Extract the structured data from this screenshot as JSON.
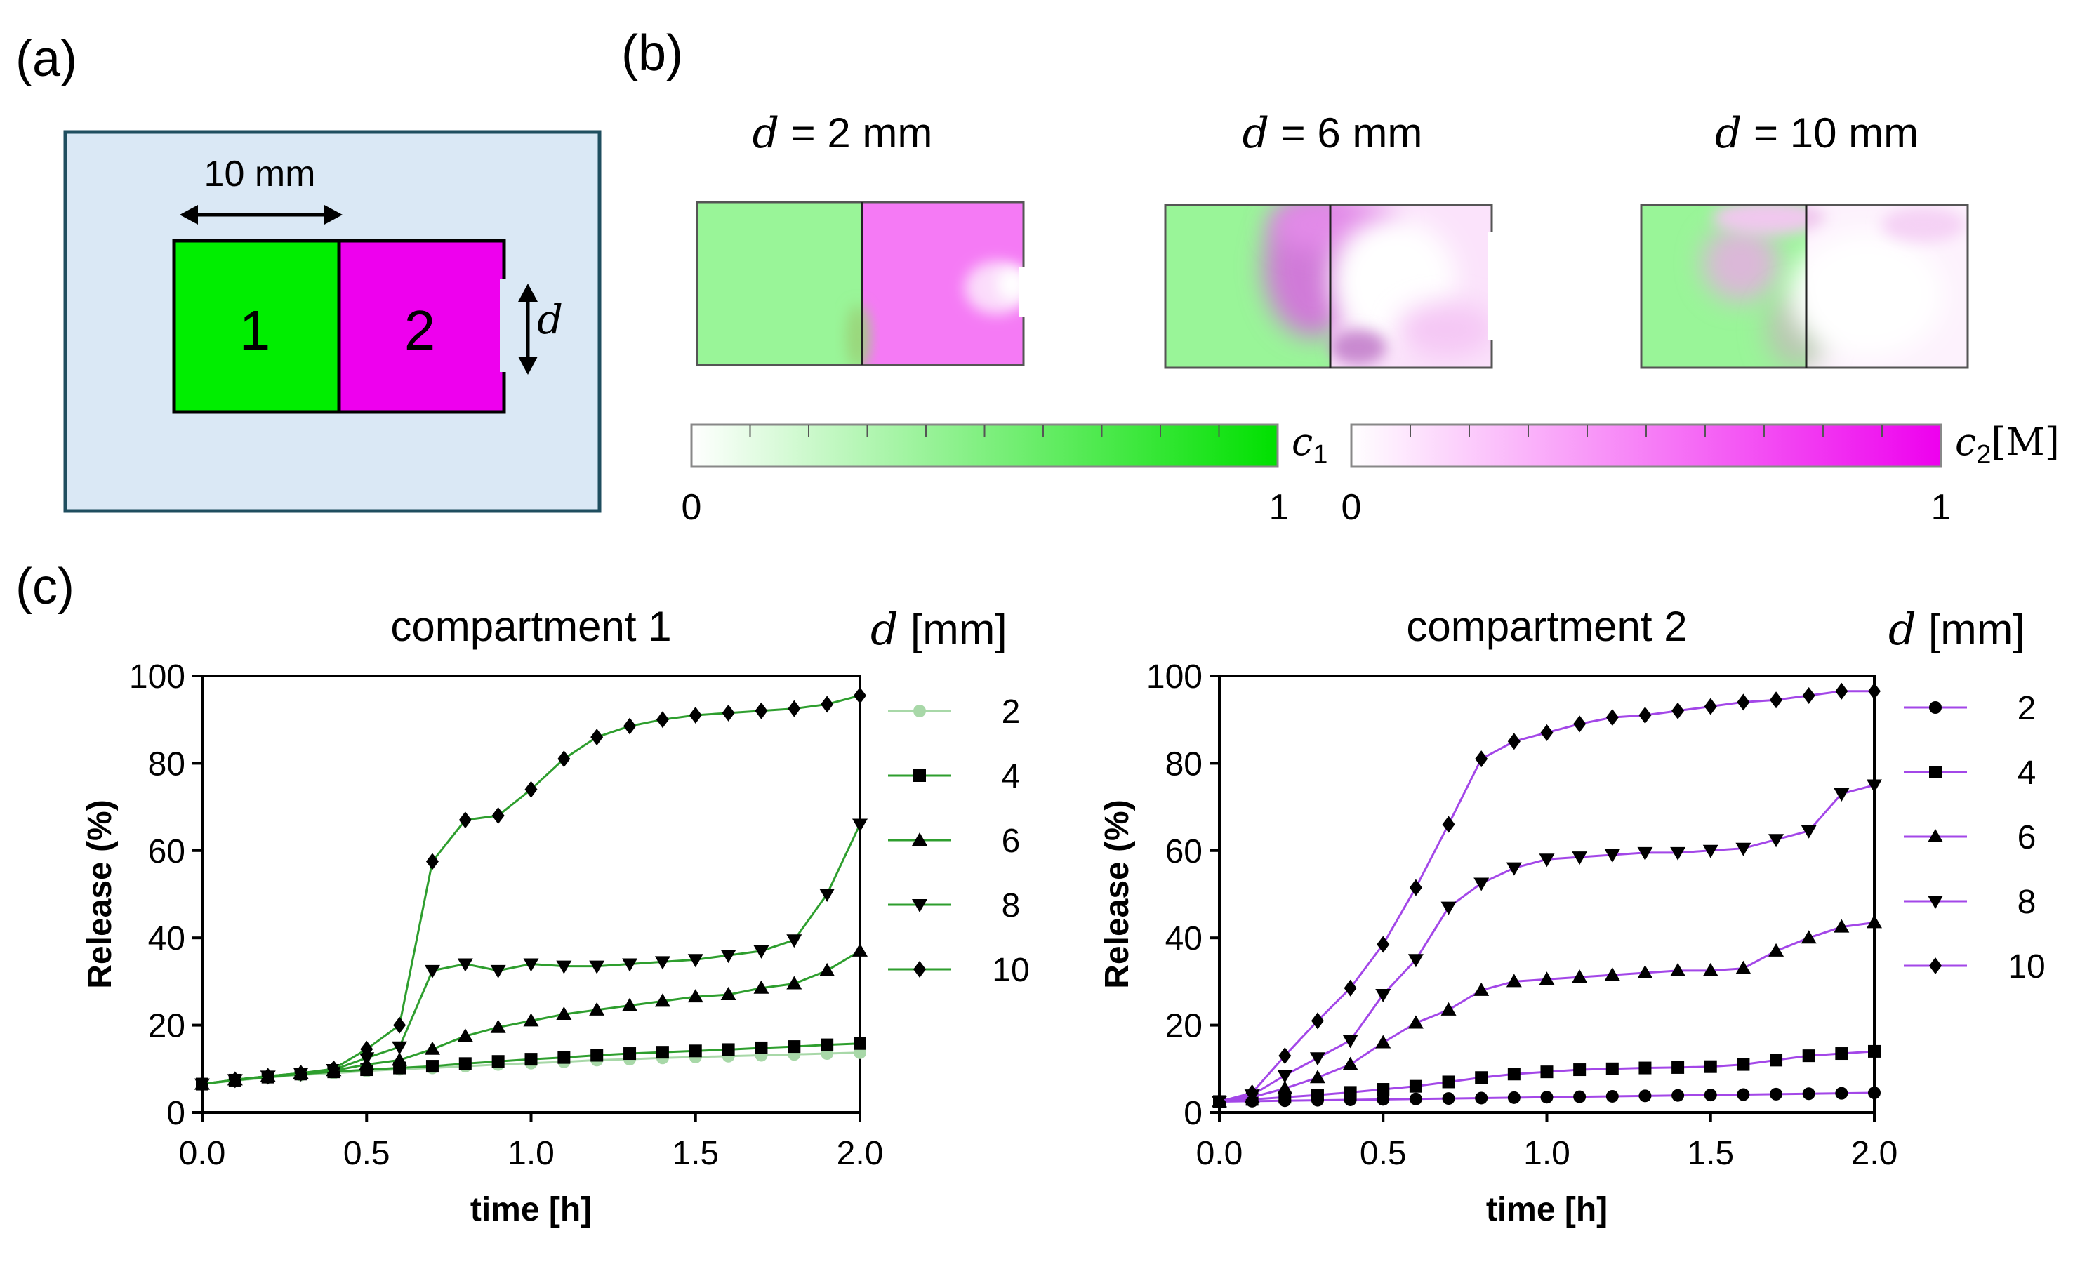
{
  "panel_a": {
    "label": "(a)",
    "width_label": "10 mm",
    "box1_label": "1",
    "box2_label": "2",
    "d_symbol": "d",
    "colors": {
      "background": "#dae8f5",
      "border": "#1f4e5f",
      "comp1": "#00ee00",
      "comp2": "#ee00ee"
    }
  },
  "panel_b": {
    "label": "(b)",
    "sims": [
      {
        "d_symbol": "d",
        "label": " = 2 mm"
      },
      {
        "d_symbol": "d",
        "label": " = 6 mm"
      },
      {
        "d_symbol": "d",
        "label": " = 10 mm"
      }
    ],
    "colorbar1": {
      "symbol": "c",
      "subscript": "1",
      "unit": "",
      "min": "0",
      "max": "1",
      "color": "#22dd22"
    },
    "colorbar2": {
      "symbol": "c",
      "subscript": "2",
      "unit": "[M]",
      "min": "0",
      "max": "1",
      "color": "#ee22ee"
    }
  },
  "panel_c": {
    "label": "(c)",
    "legend_title_symbol": "d",
    "legend_title_unit": " [mm]"
  },
  "chart_data": [
    {
      "type": "line",
      "title": "compartment 1",
      "xlabel": "time [h]",
      "ylabel": "Release (%)",
      "xlim": [
        0,
        2
      ],
      "ylim": [
        0,
        100
      ],
      "xticks": [
        "0.0",
        "0.5",
        "1.0",
        "1.5",
        "2.0"
      ],
      "yticks": [
        "0",
        "20",
        "40",
        "60",
        "80",
        "100"
      ],
      "color": "#2e9e2e",
      "x": [
        0,
        0.1,
        0.2,
        0.3,
        0.4,
        0.5,
        0.6,
        0.7,
        0.8,
        0.9,
        1.0,
        1.1,
        1.2,
        1.3,
        1.4,
        1.5,
        1.6,
        1.7,
        1.8,
        1.9,
        2.0
      ],
      "series": [
        {
          "name": "2",
          "marker": "circle-light",
          "values": [
            6.5,
            7.3,
            8.0,
            8.6,
            9.0,
            9.5,
            9.9,
            10.2,
            10.6,
            11.0,
            11.3,
            11.6,
            12.0,
            12.2,
            12.5,
            12.7,
            12.9,
            13.1,
            13.3,
            13.5,
            13.7
          ]
        },
        {
          "name": "4",
          "marker": "square",
          "values": [
            6.5,
            7.4,
            8.1,
            8.8,
            9.3,
            9.8,
            10.2,
            10.6,
            11.2,
            11.7,
            12.2,
            12.6,
            13.1,
            13.5,
            13.8,
            14.1,
            14.4,
            14.8,
            15.1,
            15.5,
            15.8
          ]
        },
        {
          "name": "6",
          "marker": "triangle-up",
          "values": [
            6.5,
            7.5,
            8.3,
            9.0,
            9.6,
            11.0,
            12.0,
            14.5,
            17.5,
            19.5,
            21.0,
            22.5,
            23.5,
            24.5,
            25.5,
            26.5,
            27.0,
            28.5,
            29.5,
            32.5,
            37.0
          ]
        },
        {
          "name": "8",
          "marker": "triangle-down",
          "values": [
            6.5,
            7.5,
            8.3,
            9.0,
            9.8,
            12.5,
            15.0,
            32.5,
            34.0,
            32.5,
            34.0,
            33.5,
            33.5,
            34.0,
            34.5,
            35.0,
            36.0,
            37.0,
            39.5,
            50.0,
            66.0
          ]
        },
        {
          "name": "10",
          "marker": "diamond",
          "values": [
            6.5,
            7.5,
            8.3,
            9.0,
            10.0,
            14.5,
            20.0,
            57.5,
            67.0,
            68.0,
            74.0,
            81.0,
            86.0,
            88.5,
            90.0,
            91.0,
            91.5,
            92.0,
            92.5,
            93.5,
            95.5
          ]
        }
      ]
    },
    {
      "type": "line",
      "title": "compartment 2",
      "xlabel": "time [h]",
      "ylabel": "Release (%)",
      "xlim": [
        0,
        2
      ],
      "ylim": [
        0,
        100
      ],
      "xticks": [
        "0.0",
        "0.5",
        "1.0",
        "1.5",
        "2.0"
      ],
      "yticks": [
        "0",
        "20",
        "40",
        "60",
        "80",
        "100"
      ],
      "color": "#a347e8",
      "x": [
        0,
        0.1,
        0.2,
        0.3,
        0.4,
        0.5,
        0.6,
        0.7,
        0.8,
        0.9,
        1.0,
        1.1,
        1.2,
        1.3,
        1.4,
        1.5,
        1.6,
        1.7,
        1.8,
        1.9,
        2.0
      ],
      "series": [
        {
          "name": "2",
          "marker": "circle",
          "values": [
            2.5,
            2.6,
            2.7,
            2.8,
            2.9,
            3.0,
            3.1,
            3.2,
            3.3,
            3.4,
            3.5,
            3.6,
            3.7,
            3.8,
            3.9,
            4.0,
            4.1,
            4.2,
            4.3,
            4.4,
            4.5
          ]
        },
        {
          "name": "4",
          "marker": "square",
          "values": [
            2.5,
            3.0,
            3.5,
            4.0,
            4.6,
            5.3,
            6.0,
            7.0,
            8.0,
            8.8,
            9.3,
            9.8,
            10.0,
            10.2,
            10.3,
            10.5,
            11.0,
            12.0,
            13.0,
            13.5,
            14.0
          ]
        },
        {
          "name": "6",
          "marker": "triangle-up",
          "values": [
            2.5,
            3.5,
            5.5,
            8.0,
            11.0,
            16.0,
            20.5,
            23.5,
            28.0,
            30.0,
            30.5,
            31.0,
            31.5,
            32.0,
            32.5,
            32.5,
            33.0,
            37.0,
            40.0,
            42.5,
            43.5
          ]
        },
        {
          "name": "8",
          "marker": "triangle-down",
          "values": [
            2.5,
            4.0,
            8.5,
            12.5,
            16.5,
            27.0,
            35.0,
            47.0,
            52.5,
            56.0,
            58.0,
            58.5,
            59.0,
            59.5,
            59.5,
            60.0,
            60.5,
            62.5,
            64.5,
            73.0,
            75.0
          ]
        },
        {
          "name": "10",
          "marker": "diamond",
          "values": [
            2.5,
            4.5,
            13.0,
            21.0,
            28.5,
            38.5,
            51.5,
            66.0,
            81.0,
            85.0,
            87.0,
            89.0,
            90.5,
            91.0,
            92.0,
            93.0,
            94.0,
            94.5,
            95.5,
            96.5,
            96.5
          ]
        }
      ]
    }
  ]
}
